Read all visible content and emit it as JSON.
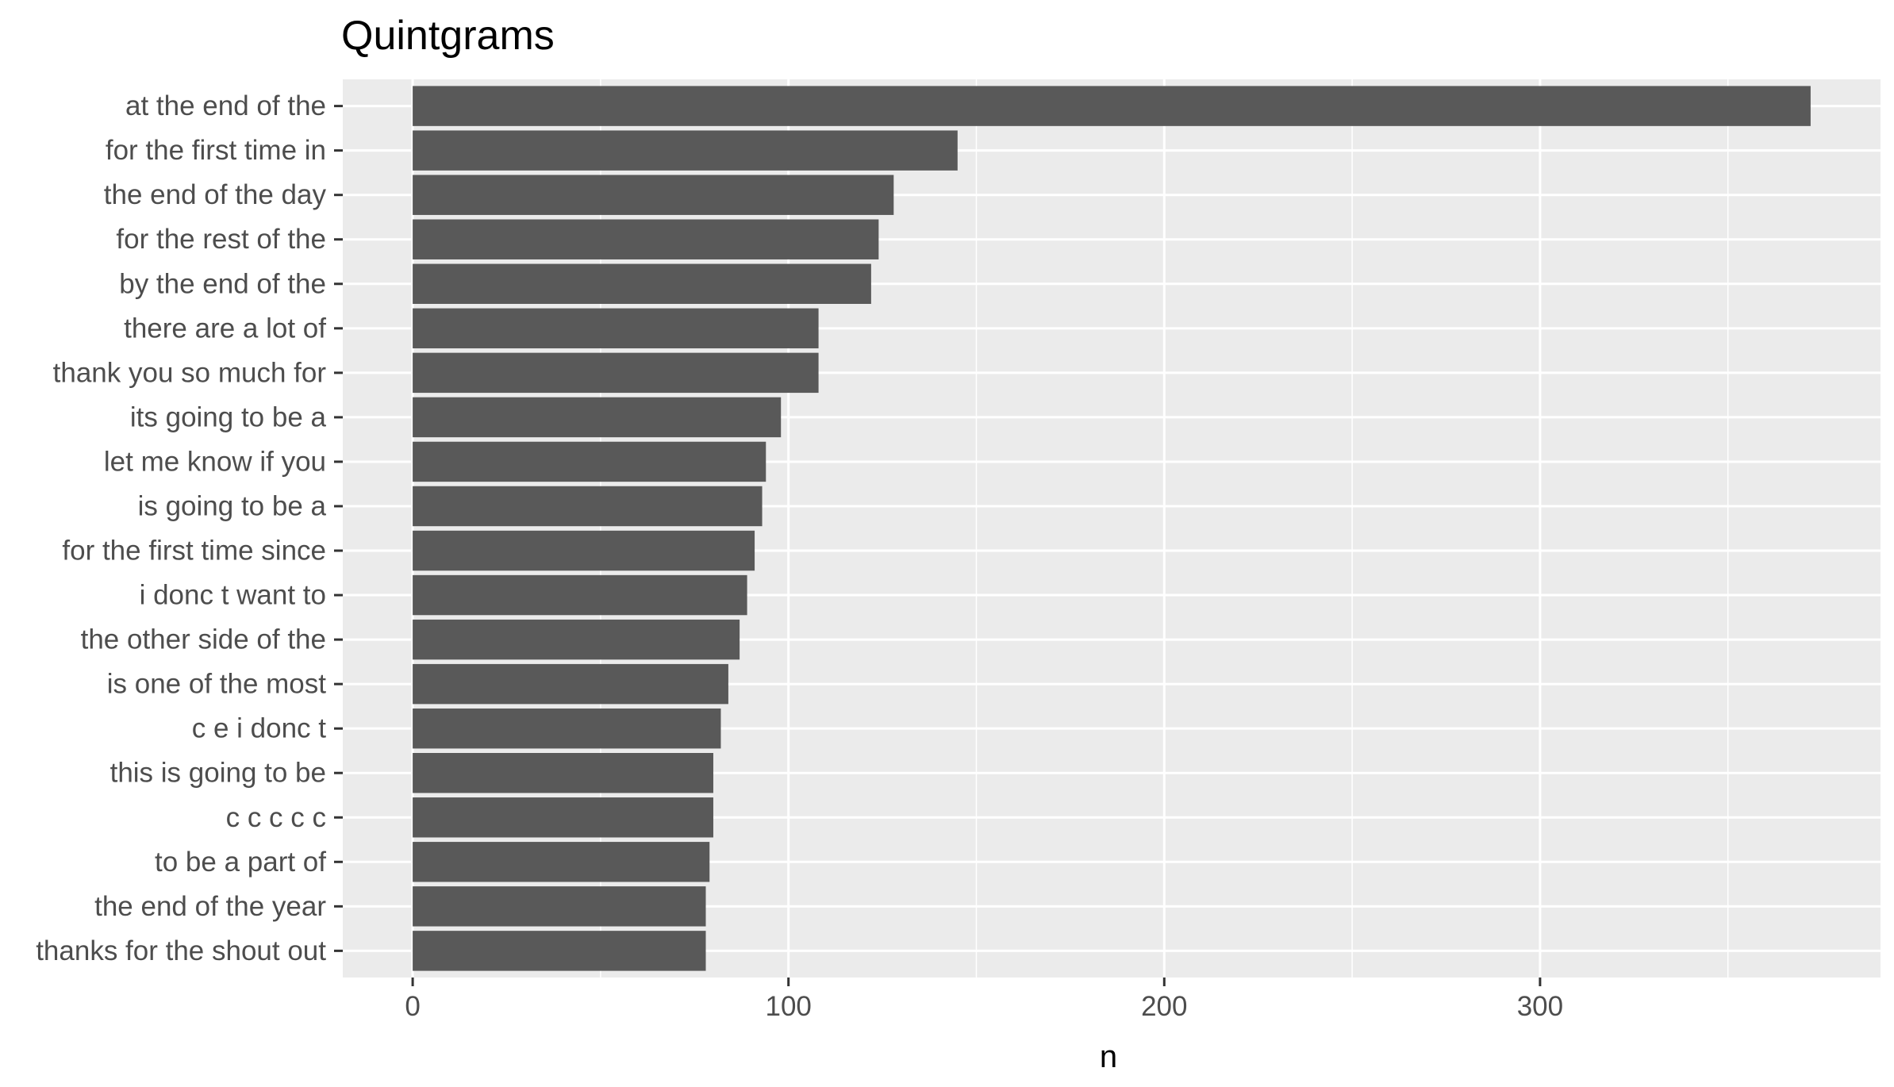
{
  "chart_data": {
    "type": "bar",
    "orientation": "horizontal",
    "title": "Quintgrams",
    "xlabel": "n",
    "ylabel": "",
    "xlim": [
      -18.6,
      390.6
    ],
    "x_ticks": [
      0,
      100,
      200,
      300
    ],
    "x_tick_labels": [
      "0",
      "100",
      "200",
      "300"
    ],
    "grid": true,
    "legend": "none",
    "colors": {
      "bar": "#595959",
      "panel_background": "#EBEBEB",
      "grid_major": "#FFFFFF",
      "text": "#4D4D4D",
      "title": "#000000"
    },
    "categories": [
      "at the end of the",
      "for the first time in",
      "the end of the day",
      "for the rest of the",
      "by the end of the",
      "there are a lot of",
      "thank you so much for",
      "its going to be a",
      "let me know if you",
      "is going to be a",
      "for the first time since",
      "i donc t want to",
      "the other side of the",
      "is one of the most",
      "c e i donc t",
      "this is going to be",
      "c c c c c",
      "to be a part of",
      "the end of the year",
      "thanks for the shout out"
    ],
    "values": [
      372,
      145,
      128,
      124,
      122,
      108,
      108,
      98,
      94,
      93,
      91,
      89,
      87,
      84,
      82,
      80,
      80,
      79,
      78,
      78
    ]
  }
}
